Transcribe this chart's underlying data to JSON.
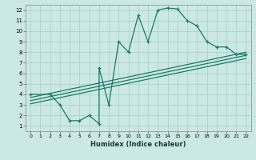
{
  "title": "",
  "xlabel": "Humidex (Indice chaleur)",
  "bg_color": "#cce8e4",
  "grid_color": "#aad4cc",
  "line_color": "#1a7a6a",
  "xlim": [
    -0.5,
    22.5
  ],
  "ylim": [
    0.5,
    12.5
  ],
  "xticks": [
    0,
    1,
    2,
    3,
    4,
    5,
    6,
    7,
    8,
    9,
    10,
    11,
    12,
    13,
    14,
    15,
    16,
    17,
    18,
    19,
    20,
    21,
    22
  ],
  "yticks": [
    1,
    2,
    3,
    4,
    5,
    6,
    7,
    8,
    9,
    10,
    11,
    12
  ],
  "main_x": [
    0,
    2,
    3,
    4,
    5,
    6,
    7,
    7,
    8,
    9,
    10,
    11,
    12,
    13,
    14,
    15,
    16,
    17,
    18,
    19,
    20,
    21,
    22
  ],
  "main_y": [
    4,
    4,
    3,
    1.5,
    1.5,
    2.0,
    1.2,
    6.5,
    3.0,
    9.0,
    8.0,
    11.5,
    9.0,
    12.0,
    12.2,
    12.1,
    11.0,
    10.5,
    9.0,
    8.5,
    8.5,
    7.8,
    7.8
  ],
  "line1_x": [
    0,
    22
  ],
  "line1_y": [
    3.7,
    8.0
  ],
  "line2_x": [
    0,
    22
  ],
  "line2_y": [
    3.4,
    7.7
  ],
  "line3_x": [
    0,
    22
  ],
  "line3_y": [
    3.1,
    7.4
  ]
}
